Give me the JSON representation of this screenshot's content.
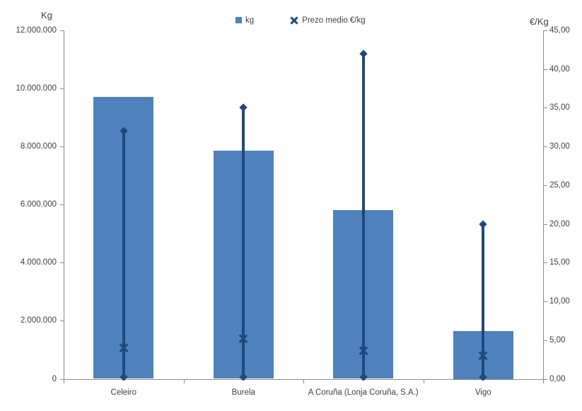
{
  "chart_data": {
    "type": "bar",
    "title": "",
    "categories": [
      "Celeiro",
      "Burela",
      "A Coruña (Lonja Coruña, S.A.)",
      "Vigo"
    ],
    "series": [
      {
        "name": "kg",
        "type": "bar",
        "axis": "left",
        "values": [
          9700000,
          7850000,
          5800000,
          1650000
        ]
      },
      {
        "name": "Prezo medio €/kg",
        "type": "scatter",
        "marker": "x",
        "axis": "right",
        "values": [
          4.0,
          5.2,
          3.6,
          3.0
        ],
        "hilo_high": [
          32,
          35,
          42,
          20
        ],
        "hilo_low": [
          0.2,
          0.2,
          0.2,
          0.2
        ]
      }
    ],
    "left_axis": {
      "title": "Kg",
      "min": 0,
      "max": 12000000,
      "step": 2000000,
      "tick_labels": [
        "12.000.000",
        "10.000.000",
        "8.000.000",
        "6.000.000",
        "4.000.000",
        "2.000.000",
        "0"
      ]
    },
    "right_axis": {
      "title": "€/Kg",
      "min": 0,
      "max": 45,
      "step": 5,
      "tick_labels": [
        "45,00",
        "40,00",
        "35,00",
        "30,00",
        "25,00",
        "20,00",
        "15,00",
        "10,00",
        "5,00",
        "0,00"
      ]
    },
    "legend": [
      {
        "label": "kg",
        "marker": "square"
      },
      {
        "label": "Prezo medio €/kg",
        "marker": "x"
      }
    ],
    "colors": {
      "bar": "#4f81bd",
      "line_marker": "#1f497d",
      "axis": "#8c8c8c",
      "text": "#3f3f3f"
    },
    "grid": "off",
    "legend_position": "top-center"
  }
}
